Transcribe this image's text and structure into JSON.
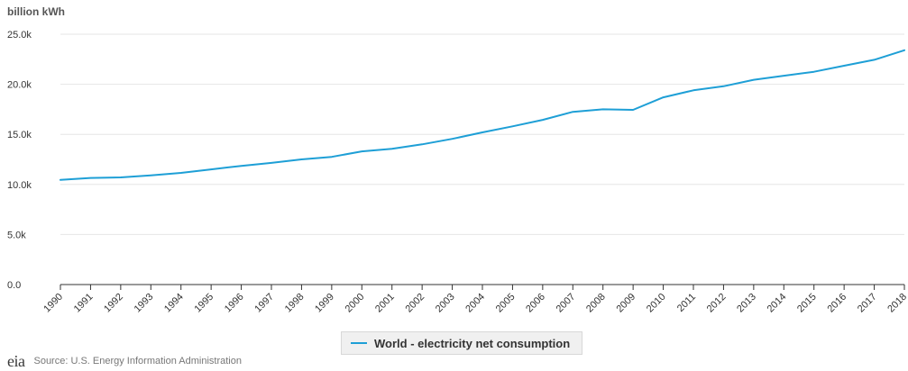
{
  "colors": {
    "series": "#1e9fd6",
    "grid": "#e6e6e6",
    "axis": "#333333",
    "text": "#333333"
  },
  "unit_label": "billion kWh",
  "legend": {
    "label": "World - electricity net consumption"
  },
  "source": {
    "logo": "eia",
    "text": "Source: U.S. Energy Information Administration"
  },
  "chart_data": {
    "type": "line",
    "x": [
      1990,
      1991,
      1992,
      1993,
      1994,
      1995,
      1996,
      1997,
      1998,
      1999,
      2000,
      2001,
      2002,
      2003,
      2004,
      2005,
      2006,
      2007,
      2008,
      2009,
      2010,
      2011,
      2012,
      2013,
      2014,
      2015,
      2016,
      2017,
      2018
    ],
    "series": [
      {
        "name": "World - electricity net consumption",
        "values": [
          10450,
          10650,
          10700,
          10900,
          11150,
          11500,
          11850,
          12150,
          12500,
          12750,
          13300,
          13550,
          14000,
          14550,
          15200,
          15800,
          16450,
          17250,
          17500,
          17450,
          18700,
          19400,
          19800,
          20450,
          20850,
          21250,
          21850,
          22450,
          23400
        ]
      }
    ],
    "ylim": [
      0,
      25000
    ],
    "yticks": [
      0,
      5000,
      10000,
      15000,
      20000,
      25000
    ],
    "ytick_labels": [
      "0.0",
      "5.0k",
      "10.0k",
      "15.0k",
      "20.0k",
      "25.0k"
    ],
    "xtick_labels": [
      "1990",
      "1991",
      "1992",
      "1993",
      "1994",
      "1995",
      "1996",
      "1997",
      "1998",
      "1999",
      "2000",
      "2001",
      "2002",
      "2003",
      "2004",
      "2005",
      "2006",
      "2007",
      "2008",
      "2009",
      "2010",
      "2011",
      "2012",
      "2013",
      "2014",
      "2015",
      "2016",
      "2017",
      "2018"
    ],
    "ylabel": "billion kWh",
    "xlabel": "",
    "grid": true,
    "legend_position": "bottom-center"
  }
}
